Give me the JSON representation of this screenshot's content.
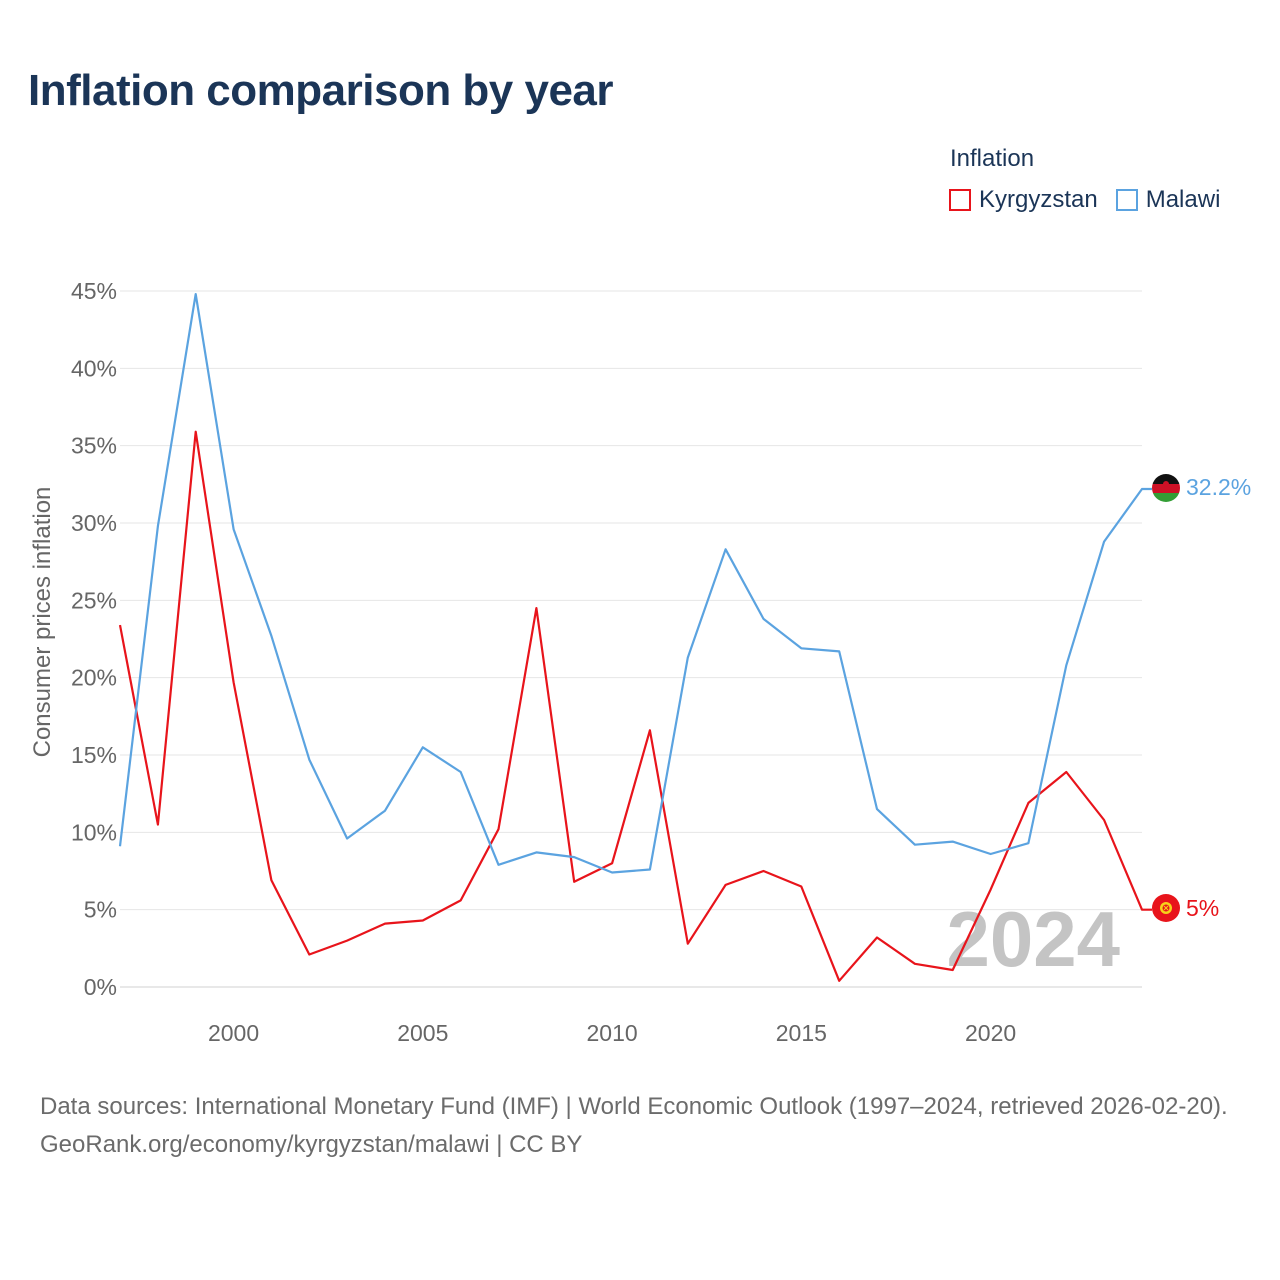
{
  "title": "Inflation comparison by year",
  "legend": {
    "title": "Inflation",
    "items": [
      {
        "label": "Kyrgyzstan",
        "color": "#e8141b"
      },
      {
        "label": "Malawi",
        "color": "#5ba3e0"
      }
    ]
  },
  "sources": {
    "line1": "Data sources: International Monetary Fund (IMF) | World Economic Outlook (1997–2024, retrieved 2026-02-20).",
    "line2": "GeoRank.org/economy/kyrgyzstan/malawi | CC BY"
  },
  "chart_data": {
    "type": "line",
    "ylabel": "Consumer prices inflation",
    "xlabel": "",
    "xlim": [
      1997,
      2024
    ],
    "ylim": [
      0,
      45
    ],
    "yticks": [
      0,
      5,
      10,
      15,
      20,
      25,
      30,
      35,
      40,
      45
    ],
    "ytick_labels": [
      "0%",
      "5%",
      "10%",
      "15%",
      "20%",
      "25%",
      "30%",
      "35%",
      "40%",
      "45%"
    ],
    "xticks": [
      2000,
      2005,
      2010,
      2015,
      2020
    ],
    "xtick_labels": [
      "2000",
      "2005",
      "2010",
      "2015",
      "2020"
    ],
    "watermark": "2024",
    "x": [
      1997,
      1998,
      1999,
      2000,
      2001,
      2002,
      2003,
      2004,
      2005,
      2006,
      2007,
      2008,
      2009,
      2010,
      2011,
      2012,
      2013,
      2014,
      2015,
      2016,
      2017,
      2018,
      2019,
      2020,
      2021,
      2022,
      2023,
      2024
    ],
    "series": [
      {
        "name": "Kyrgyzstan",
        "color": "#e8141b",
        "end_label": "5%",
        "flag": "kyrgyzstan-flag-icon",
        "values": [
          23.4,
          10.5,
          35.9,
          19.7,
          6.9,
          2.1,
          3.0,
          4.1,
          4.3,
          5.6,
          10.2,
          24.5,
          6.8,
          8.0,
          16.6,
          2.8,
          6.6,
          7.5,
          6.5,
          0.4,
          3.2,
          1.5,
          1.1,
          6.3,
          11.9,
          13.9,
          10.8,
          5.0
        ]
      },
      {
        "name": "Malawi",
        "color": "#5ba3e0",
        "end_label": "32.2%",
        "flag": "malawi-flag-icon",
        "values": [
          9.1,
          29.8,
          44.8,
          29.6,
          22.7,
          14.7,
          9.6,
          11.4,
          15.5,
          13.9,
          7.9,
          8.7,
          8.4,
          7.4,
          7.6,
          21.3,
          28.3,
          23.8,
          21.9,
          21.7,
          11.5,
          9.2,
          9.4,
          8.6,
          9.3,
          20.8,
          28.8,
          32.2
        ]
      }
    ]
  }
}
